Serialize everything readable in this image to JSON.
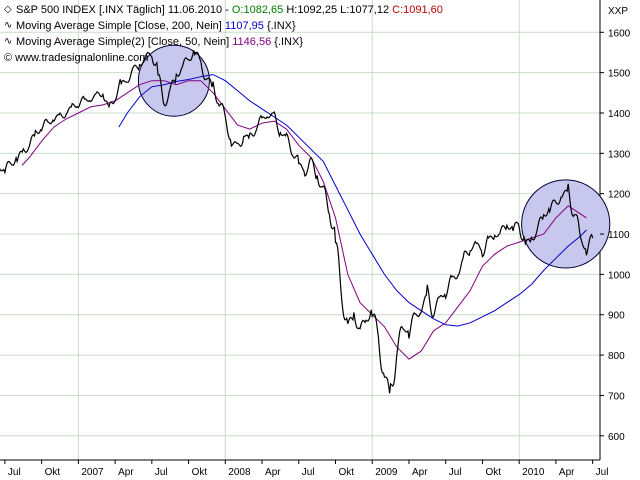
{
  "legend": {
    "title": "S&P 500 INDEX [.INX  Täglich] 11.06.2010",
    "open_label": "O:",
    "open": "1082,65",
    "high_label": "H:",
    "high": "1092,25",
    "low_label": "L:",
    "low": "1077,12",
    "close_label": "C:",
    "close": "1091,60",
    "ma200_label": "Moving Average Simple [Close, 200, Nein]",
    "ma200_value": "1107,95",
    "ma200_symbol": "{.INX}",
    "ma50_label": "Moving Average Simple(2) [Close, 50, Nein]",
    "ma50_value": "1146,56",
    "ma50_symbol": "{.INX}",
    "watermark": "© www.tradesignalonline.com",
    "ma_icon": "line-indicator-icon"
  },
  "colors": {
    "price": "#000000",
    "ma200": "#0000cc",
    "ma50": "#800080",
    "open": "#008000",
    "close": "#c00000",
    "grid": "#c8dcc8",
    "highlight_fill": "#c8c8ee",
    "highlight_stroke": "#000033"
  },
  "chart_data": {
    "type": "line",
    "title": "S&P 500 INDEX",
    "ylabel": "XXP",
    "ylim": [
      540,
      1680
    ],
    "yticks": [
      600,
      700,
      800,
      900,
      1000,
      1100,
      1200,
      1300,
      1400,
      1500,
      1600
    ],
    "xticks": [
      {
        "label": "Jul",
        "t": 0
      },
      {
        "label": "Okt",
        "t": 3
      },
      {
        "label": "2007",
        "t": 6
      },
      {
        "label": "Apr",
        "t": 9
      },
      {
        "label": "Jul",
        "t": 12
      },
      {
        "label": "Okt",
        "t": 15
      },
      {
        "label": "2008",
        "t": 18
      },
      {
        "label": "Apr",
        "t": 21
      },
      {
        "label": "Jul",
        "t": 24
      },
      {
        "label": "Okt",
        "t": 27
      },
      {
        "label": "2009",
        "t": 30
      },
      {
        "label": "Apr",
        "t": 33
      },
      {
        "label": "Jul",
        "t": 36
      },
      {
        "label": "Okt",
        "t": 39
      },
      {
        "label": "2010",
        "t": 42
      },
      {
        "label": "Apr",
        "t": 45
      },
      {
        "label": "Jul",
        "t": 48
      }
    ],
    "x_range": [
      -0.4,
      48.6
    ],
    "series": [
      {
        "name": "S&P 500 INDEX",
        "points": [
          [
            -0.6,
            1270
          ],
          [
            0,
            1250
          ],
          [
            0.5,
            1275
          ],
          [
            1,
            1290
          ],
          [
            1.5,
            1310
          ],
          [
            2,
            1320
          ],
          [
            2.5,
            1345
          ],
          [
            3,
            1360
          ],
          [
            3.5,
            1375
          ],
          [
            4,
            1390
          ],
          [
            4.5,
            1395
          ],
          [
            5,
            1400
          ],
          [
            5.5,
            1410
          ],
          [
            6,
            1420
          ],
          [
            6.5,
            1430
          ],
          [
            7,
            1440
          ],
          [
            7.5,
            1445
          ],
          [
            8,
            1455
          ],
          [
            8.5,
            1390
          ],
          [
            9,
            1440
          ],
          [
            9.5,
            1470
          ],
          [
            10,
            1490
          ],
          [
            10.5,
            1510
          ],
          [
            11,
            1520
          ],
          [
            11.5,
            1530
          ],
          [
            12,
            1545
          ],
          [
            12.5,
            1500
          ],
          [
            13,
            1430
          ],
          [
            13.5,
            1460
          ],
          [
            14,
            1490
          ],
          [
            14.5,
            1510
          ],
          [
            15,
            1530
          ],
          [
            15.5,
            1555
          ],
          [
            16,
            1530
          ],
          [
            16.5,
            1490
          ],
          [
            17,
            1460
          ],
          [
            17.5,
            1420
          ],
          [
            18,
            1380
          ],
          [
            18.5,
            1330
          ],
          [
            19,
            1320
          ],
          [
            19.5,
            1350
          ],
          [
            20,
            1330
          ],
          [
            20.5,
            1360
          ],
          [
            21,
            1380
          ],
          [
            21.5,
            1400
          ],
          [
            22,
            1395
          ],
          [
            22.5,
            1360
          ],
          [
            23,
            1330
          ],
          [
            23.5,
            1300
          ],
          [
            24,
            1270
          ],
          [
            24.5,
            1260
          ],
          [
            25,
            1285
          ],
          [
            25.5,
            1250
          ],
          [
            26,
            1200
          ],
          [
            26.5,
            1150
          ],
          [
            27,
            1080
          ],
          [
            27.5,
            960
          ],
          [
            28,
            880
          ],
          [
            28.5,
            900
          ],
          [
            29,
            860
          ],
          [
            29.5,
            880
          ],
          [
            30,
            910
          ],
          [
            30.5,
            850
          ],
          [
            31,
            760
          ],
          [
            31.5,
            700
          ],
          [
            32,
            800
          ],
          [
            32.5,
            860
          ],
          [
            33,
            860
          ],
          [
            33.5,
            900
          ],
          [
            34,
            920
          ],
          [
            34.5,
            950
          ],
          [
            35,
            900
          ],
          [
            35.5,
            930
          ],
          [
            36,
            960
          ],
          [
            36.5,
            990
          ],
          [
            37,
            1010
          ],
          [
            37.5,
            1040
          ],
          [
            38,
            1060
          ],
          [
            38.5,
            1070
          ],
          [
            39,
            1060
          ],
          [
            39.5,
            1090
          ],
          [
            40,
            1100
          ],
          [
            40.5,
            1100
          ],
          [
            41,
            1120
          ],
          [
            41.5,
            1105
          ],
          [
            42,
            1130
          ],
          [
            42.5,
            1080
          ],
          [
            43,
            1090
          ],
          [
            43.5,
            1110
          ],
          [
            44,
            1140
          ],
          [
            44.5,
            1160
          ],
          [
            45,
            1180
          ],
          [
            45.5,
            1200
          ],
          [
            46,
            1210
          ],
          [
            46.5,
            1150
          ],
          [
            47,
            1080
          ],
          [
            47.5,
            1060
          ],
          [
            48,
            1090
          ]
        ]
      },
      {
        "name": "Moving Average Simple(2) [Close, 50, Nein]",
        "points": [
          [
            1.4,
            1270
          ],
          [
            2,
            1290
          ],
          [
            3,
            1330
          ],
          [
            4,
            1365
          ],
          [
            5,
            1385
          ],
          [
            6,
            1400
          ],
          [
            7,
            1415
          ],
          [
            8,
            1420
          ],
          [
            9,
            1430
          ],
          [
            10,
            1450
          ],
          [
            11,
            1470
          ],
          [
            12,
            1480
          ],
          [
            13,
            1480
          ],
          [
            14,
            1470
          ],
          [
            15,
            1480
          ],
          [
            16,
            1480
          ],
          [
            17,
            1450
          ],
          [
            18,
            1410
          ],
          [
            19,
            1370
          ],
          [
            20,
            1360
          ],
          [
            21,
            1375
          ],
          [
            22,
            1380
          ],
          [
            23,
            1360
          ],
          [
            24,
            1320
          ],
          [
            25,
            1290
          ],
          [
            26,
            1230
          ],
          [
            27,
            1140
          ],
          [
            28,
            1000
          ],
          [
            29,
            930
          ],
          [
            30,
            900
          ],
          [
            31,
            870
          ],
          [
            32,
            820
          ],
          [
            33,
            790
          ],
          [
            34,
            810
          ],
          [
            35,
            860
          ],
          [
            36,
            880
          ],
          [
            37,
            920
          ],
          [
            38,
            960
          ],
          [
            39,
            1020
          ],
          [
            40,
            1050
          ],
          [
            41,
            1070
          ],
          [
            42,
            1080
          ],
          [
            43,
            1090
          ],
          [
            44,
            1100
          ],
          [
            45,
            1140
          ],
          [
            46,
            1170
          ],
          [
            47,
            1150
          ],
          [
            47.5,
            1140
          ]
        ]
      },
      {
        "name": "Moving Average Simple [Close, 200, Nein]",
        "points": [
          [
            9.3,
            1365
          ],
          [
            10,
            1400
          ],
          [
            11,
            1440
          ],
          [
            12,
            1465
          ],
          [
            13,
            1470
          ],
          [
            14,
            1478
          ],
          [
            15,
            1483
          ],
          [
            16,
            1490
          ],
          [
            17,
            1495
          ],
          [
            18,
            1480
          ],
          [
            19,
            1455
          ],
          [
            20,
            1430
          ],
          [
            21,
            1410
          ],
          [
            22,
            1390
          ],
          [
            23,
            1370
          ],
          [
            24,
            1340
          ],
          [
            25,
            1310
          ],
          [
            26,
            1280
          ],
          [
            27,
            1220
          ],
          [
            28,
            1160
          ],
          [
            29,
            1100
          ],
          [
            30,
            1050
          ],
          [
            31,
            1000
          ],
          [
            32,
            960
          ],
          [
            33,
            930
          ],
          [
            34,
            910
          ],
          [
            35,
            890
          ],
          [
            36,
            875
          ],
          [
            37,
            872
          ],
          [
            38,
            880
          ],
          [
            39,
            895
          ],
          [
            40,
            910
          ],
          [
            41,
            930
          ],
          [
            42,
            950
          ],
          [
            43,
            975
          ],
          [
            44,
            1010
          ],
          [
            45,
            1040
          ],
          [
            46,
            1070
          ],
          [
            47,
            1095
          ],
          [
            47.5,
            1110
          ]
        ]
      }
    ],
    "highlights": [
      {
        "t": 13.8,
        "price": 1480,
        "r_t": 2.9
      },
      {
        "t": 45.8,
        "price": 1125,
        "r_t": 3.6
      }
    ],
    "grid": true
  }
}
